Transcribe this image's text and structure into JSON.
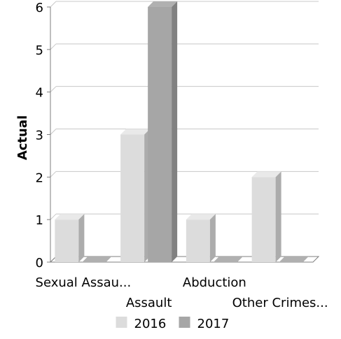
{
  "chart_data": {
    "type": "bar",
    "title": "",
    "xlabel": "",
    "ylabel": "Actual",
    "ylim": [
      0,
      6
    ],
    "yticks": [
      0,
      1,
      2,
      3,
      4,
      5,
      6
    ],
    "categories": [
      "Sexual Assau...",
      "Assault",
      "Abduction",
      "Other Crimes..."
    ],
    "series": [
      {
        "name": "2016",
        "color": "#dcdcdc",
        "values": [
          1,
          3,
          1,
          2
        ]
      },
      {
        "name": "2017",
        "color": "#a6a6a6",
        "values": [
          0,
          6,
          0,
          0
        ]
      }
    ],
    "grid": true,
    "legend": "bottom",
    "style": "3d-bars"
  }
}
